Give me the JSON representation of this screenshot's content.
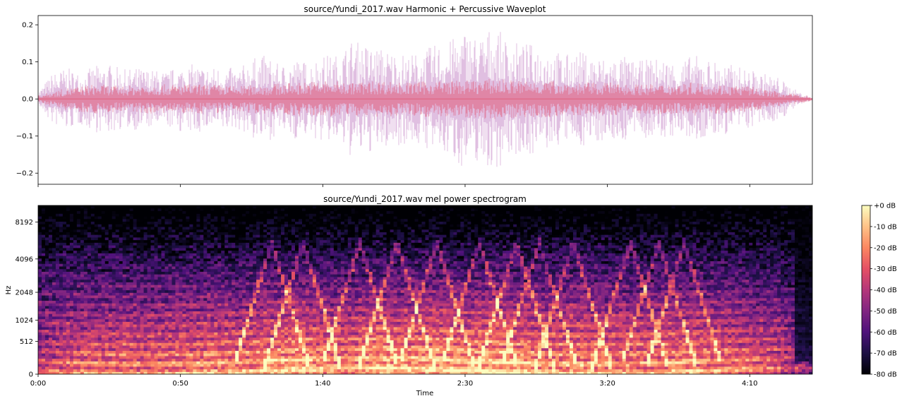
{
  "chart_data": [
    {
      "type": "area",
      "title": "source/Yundi_2017.wav Harmonic + Percussive Waveplot",
      "xlabel": "",
      "ylabel": "",
      "ylim": [
        -0.23,
        0.225
      ],
      "yticks": [
        0.2,
        0.1,
        0.0,
        -0.1,
        -0.2
      ],
      "ytick_labels": [
        "0.2",
        "0.1",
        "0.0",
        "−0.1",
        "−0.2"
      ],
      "xlim_seconds": [
        0,
        272
      ],
      "xticks_seconds": [
        0,
        50,
        100,
        150,
        200,
        250
      ],
      "series": [
        {
          "role": "harmonic",
          "color": "#c68bc9",
          "envelope_x_seconds": [
            0,
            5,
            10,
            15,
            20,
            25,
            30,
            35,
            40,
            45,
            50,
            55,
            60,
            65,
            70,
            75,
            80,
            85,
            90,
            95,
            100,
            105,
            110,
            115,
            120,
            125,
            130,
            135,
            140,
            145,
            150,
            155,
            160,
            165,
            170,
            175,
            180,
            185,
            190,
            195,
            200,
            205,
            210,
            215,
            220,
            225,
            230,
            235,
            240,
            245,
            250,
            255,
            260,
            265,
            270,
            272
          ],
          "envelope_y": [
            0.02,
            0.07,
            0.085,
            0.07,
            0.09,
            0.095,
            0.08,
            0.085,
            0.08,
            0.075,
            0.09,
            0.095,
            0.085,
            0.09,
            0.08,
            0.11,
            0.12,
            0.09,
            0.11,
            0.1,
            0.12,
            0.12,
            0.16,
            0.15,
            0.14,
            0.13,
            0.12,
            0.13,
            0.15,
            0.16,
            0.19,
            0.17,
            0.2,
            0.16,
            0.15,
            0.15,
            0.14,
            0.12,
            0.13,
            0.12,
            0.11,
            0.12,
            0.1,
            0.11,
            0.11,
            0.1,
            0.12,
            0.11,
            0.1,
            0.09,
            0.08,
            0.07,
            0.06,
            0.03,
            0.01,
            0.003
          ]
        },
        {
          "role": "percussive",
          "color": "#e0607e",
          "envelope_x_seconds": [
            0,
            10,
            20,
            30,
            40,
            50,
            60,
            70,
            80,
            90,
            100,
            110,
            120,
            130,
            140,
            150,
            160,
            170,
            180,
            190,
            200,
            210,
            220,
            230,
            240,
            250,
            260,
            270,
            272
          ],
          "envelope_y": [
            0.01,
            0.03,
            0.04,
            0.035,
            0.04,
            0.04,
            0.04,
            0.035,
            0.04,
            0.045,
            0.05,
            0.045,
            0.05,
            0.045,
            0.05,
            0.05,
            0.055,
            0.05,
            0.05,
            0.045,
            0.045,
            0.04,
            0.04,
            0.045,
            0.04,
            0.035,
            0.02,
            0.01,
            0.003
          ]
        }
      ]
    },
    {
      "type": "heatmap",
      "title": "source/Yundi_2017.wav mel power spectrogram",
      "xlabel": "Time",
      "ylabel": "Hz",
      "xlim_seconds": [
        0,
        272
      ],
      "xticks_seconds": [
        0,
        50,
        100,
        150,
        200,
        250
      ],
      "xtick_labels": [
        "0:00",
        "0:50",
        "1:40",
        "2:30",
        "3:20",
        "4:10"
      ],
      "yticks_hz": [
        0,
        512,
        1024,
        2048,
        4096,
        8192
      ],
      "ytick_labels": [
        "0",
        "512",
        "1024",
        "2048",
        "4096",
        "8192"
      ],
      "fmax_hz": 11025,
      "colorbar": {
        "range_db": [
          -80,
          0
        ],
        "ticks_db": [
          0,
          -10,
          -20,
          -30,
          -40,
          -50,
          -60,
          -70,
          -80
        ],
        "tick_labels": [
          "+0 dB",
          "-10 dB",
          "-20 dB",
          "-30 dB",
          "-40 dB",
          "-50 dB",
          "-60 dB",
          "-70 dB",
          "-80 dB"
        ],
        "colormap": "magma",
        "stops": [
          "#000004",
          "#1c1044",
          "#4f127b",
          "#812581",
          "#b5367a",
          "#e55064",
          "#fb8761",
          "#fec287",
          "#fcfdbf"
        ]
      },
      "loudness_x_seconds": [
        0,
        10,
        20,
        30,
        40,
        50,
        60,
        70,
        80,
        90,
        100,
        110,
        120,
        130,
        140,
        150,
        160,
        170,
        180,
        190,
        200,
        210,
        220,
        230,
        240,
        250,
        260,
        265,
        270,
        272
      ],
      "loudness": [
        0.55,
        0.7,
        0.72,
        0.75,
        0.72,
        0.78,
        0.8,
        0.78,
        0.85,
        0.9,
        0.85,
        0.82,
        0.92,
        0.9,
        0.92,
        0.88,
        0.95,
        0.88,
        0.82,
        0.85,
        0.8,
        0.78,
        0.8,
        0.82,
        0.78,
        0.72,
        0.65,
        0.5,
        0.35,
        0.3
      ],
      "gliss_peaks_seconds": [
        82,
        93,
        113,
        126,
        140,
        155,
        168,
        176,
        188,
        208,
        218,
        227
      ]
    }
  ]
}
